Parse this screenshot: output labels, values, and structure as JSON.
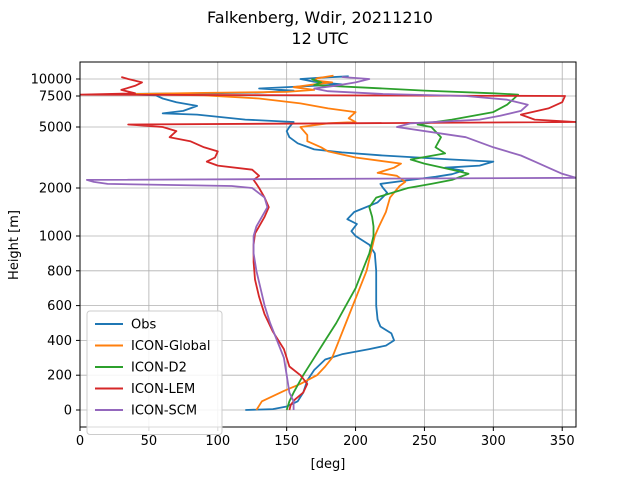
{
  "chart_data": {
    "type": "line",
    "title": "Falkenberg, Wdir, 20211210",
    "subtitle": "12 UTC",
    "xlabel": "[deg]",
    "ylabel": "Height [m]",
    "xlim": [
      0,
      360
    ],
    "x_ticks": [
      0,
      50,
      100,
      150,
      200,
      250,
      300,
      350
    ],
    "y_ticks": [
      0,
      200,
      400,
      600,
      800,
      1000,
      2000,
      5000,
      7500,
      10000
    ],
    "y_tick_labels": [
      "0",
      "200",
      "400",
      "600",
      "800",
      "1000",
      "2000",
      "5000",
      "7500",
      "10000"
    ],
    "grid": true,
    "legend_position": "lower-left",
    "series": [
      {
        "name": "Obs",
        "color": "#1f77b4",
        "points": [
          [
            120,
            0
          ],
          [
            140,
            5
          ],
          [
            150,
            20
          ],
          [
            158,
            50
          ],
          [
            162,
            100
          ],
          [
            165,
            170
          ],
          [
            170,
            230
          ],
          [
            178,
            290
          ],
          [
            190,
            320
          ],
          [
            210,
            350
          ],
          [
            222,
            370
          ],
          [
            228,
            400
          ],
          [
            226,
            440
          ],
          [
            218,
            480
          ],
          [
            216,
            520
          ],
          [
            215,
            600
          ],
          [
            215,
            700
          ],
          [
            215,
            800
          ],
          [
            214,
            900
          ],
          [
            210,
            950
          ],
          [
            200,
            1000
          ],
          [
            197,
            1100
          ],
          [
            201,
            1250
          ],
          [
            194,
            1350
          ],
          [
            199,
            1500
          ],
          [
            216,
            1700
          ],
          [
            223,
            1900
          ],
          [
            220,
            2000
          ],
          [
            218,
            2200
          ],
          [
            240,
            2400
          ],
          [
            258,
            2550
          ],
          [
            270,
            2680
          ],
          [
            278,
            2850
          ],
          [
            265,
            3000
          ],
          [
            290,
            3100
          ],
          [
            300,
            3300
          ],
          [
            270,
            3400
          ],
          [
            220,
            3600
          ],
          [
            190,
            3750
          ],
          [
            170,
            3900
          ],
          [
            158,
            4200
          ],
          [
            152,
            4500
          ],
          [
            150,
            4800
          ],
          [
            152,
            5000
          ],
          [
            155,
            5400
          ],
          [
            120,
            5600
          ],
          [
            85,
            6000
          ],
          [
            60,
            6100
          ],
          [
            75,
            6300
          ],
          [
            85,
            6700
          ],
          [
            70,
            7000
          ],
          [
            60,
            7300
          ],
          [
            55,
            7600
          ],
          [
            30,
            7800
          ],
          [
            90,
            7900
          ],
          [
            130,
            8000
          ],
          [
            155,
            8300
          ],
          [
            130,
            8600
          ],
          [
            160,
            8900
          ],
          [
            190,
            9200
          ],
          [
            170,
            9600
          ],
          [
            160,
            10000
          ],
          [
            175,
            10200
          ],
          [
            195,
            10400
          ]
        ]
      },
      {
        "name": "ICON-Global",
        "color": "#ff7f0e",
        "points": [
          [
            128,
            0
          ],
          [
            132,
            50
          ],
          [
            148,
            110
          ],
          [
            160,
            150
          ],
          [
            172,
            200
          ],
          [
            178,
            250
          ],
          [
            183,
            300
          ],
          [
            188,
            400
          ],
          [
            193,
            500
          ],
          [
            198,
            600
          ],
          [
            203,
            700
          ],
          [
            208,
            800
          ],
          [
            214,
            1000
          ],
          [
            217,
            1200
          ],
          [
            222,
            1500
          ],
          [
            225,
            1800
          ],
          [
            232,
            2100
          ],
          [
            236,
            2300
          ],
          [
            230,
            2600
          ],
          [
            216,
            2750
          ],
          [
            228,
            3000
          ],
          [
            233,
            3200
          ],
          [
            200,
            3500
          ],
          [
            180,
            3800
          ],
          [
            175,
            4000
          ],
          [
            165,
            4300
          ],
          [
            165,
            4600
          ],
          [
            160,
            5000
          ],
          [
            180,
            5300
          ],
          [
            200,
            5400
          ],
          [
            195,
            5700
          ],
          [
            200,
            6200
          ],
          [
            180,
            6500
          ],
          [
            160,
            6900
          ],
          [
            130,
            7300
          ],
          [
            90,
            7600
          ],
          [
            60,
            7700
          ],
          [
            40,
            7800
          ],
          [
            90,
            7950
          ],
          [
            150,
            8100
          ],
          [
            170,
            8400
          ],
          [
            155,
            8800
          ],
          [
            170,
            9200
          ],
          [
            183,
            9500
          ],
          [
            170,
            9800
          ],
          [
            172,
            10100
          ],
          [
            184,
            10500
          ]
        ]
      },
      {
        "name": "ICON-D2",
        "color": "#2ca02c",
        "points": [
          [
            150,
            0
          ],
          [
            152,
            50
          ],
          [
            155,
            100
          ],
          [
            162,
            200
          ],
          [
            170,
            300
          ],
          [
            178,
            400
          ],
          [
            186,
            500
          ],
          [
            193,
            600
          ],
          [
            200,
            700
          ],
          [
            205,
            800
          ],
          [
            210,
            900
          ],
          [
            213,
            1000
          ],
          [
            213,
            1200
          ],
          [
            212,
            1400
          ],
          [
            210,
            1600
          ],
          [
            215,
            1800
          ],
          [
            238,
            2000
          ],
          [
            255,
            2200
          ],
          [
            270,
            2400
          ],
          [
            282,
            2700
          ],
          [
            270,
            2900
          ],
          [
            250,
            3200
          ],
          [
            240,
            3400
          ],
          [
            265,
            3700
          ],
          [
            258,
            4000
          ],
          [
            262,
            4500
          ],
          [
            255,
            5000
          ],
          [
            245,
            5200
          ],
          [
            270,
            5600
          ],
          [
            300,
            6200
          ],
          [
            310,
            6800
          ],
          [
            315,
            7300
          ],
          [
            318,
            7700
          ],
          [
            300,
            7900
          ],
          [
            250,
            8300
          ],
          [
            210,
            8700
          ],
          [
            170,
            9100
          ],
          [
            175,
            9500
          ],
          [
            168,
            10000
          ]
        ]
      },
      {
        "name": "ICON-LEM",
        "color": "#d62728",
        "points": [
          [
            152,
            0
          ],
          [
            153,
            30
          ],
          [
            156,
            60
          ],
          [
            162,
            100
          ],
          [
            165,
            150
          ],
          [
            160,
            200
          ],
          [
            152,
            250
          ],
          [
            148,
            350
          ],
          [
            140,
            450
          ],
          [
            134,
            550
          ],
          [
            130,
            650
          ],
          [
            127,
            750
          ],
          [
            126,
            850
          ],
          [
            126,
            950
          ],
          [
            127,
            1050
          ],
          [
            130,
            1200
          ],
          [
            134,
            1400
          ],
          [
            137,
            1600
          ],
          [
            134,
            1800
          ],
          [
            130,
            2000
          ],
          [
            128,
            2200
          ],
          [
            126,
            2400
          ],
          [
            130,
            2600
          ],
          [
            125,
            2900
          ],
          [
            100,
            3100
          ],
          [
            92,
            3300
          ],
          [
            98,
            3500
          ],
          [
            100,
            3800
          ],
          [
            90,
            4000
          ],
          [
            80,
            4300
          ],
          [
            65,
            4500
          ],
          [
            70,
            4800
          ],
          [
            60,
            5000
          ],
          [
            35,
            5200
          ],
          [
            360,
            5400
          ],
          [
            330,
            5600
          ],
          [
            320,
            6000
          ],
          [
            340,
            6500
          ],
          [
            350,
            7000
          ],
          [
            352,
            7500
          ],
          [
            0,
            7700
          ],
          [
            40,
            7900
          ],
          [
            30,
            8400
          ],
          [
            40,
            9000
          ],
          [
            45,
            9500
          ],
          [
            35,
            10000
          ],
          [
            30,
            10300
          ]
        ]
      },
      {
        "name": "ICON-SCM",
        "color": "#9467bd",
        "points": [
          [
            155,
            0
          ],
          [
            155,
            50
          ],
          [
            152,
            100
          ],
          [
            150,
            200
          ],
          [
            148,
            300
          ],
          [
            143,
            400
          ],
          [
            138,
            500
          ],
          [
            134,
            600
          ],
          [
            131,
            700
          ],
          [
            128,
            800
          ],
          [
            126,
            900
          ],
          [
            126,
            1000
          ],
          [
            128,
            1200
          ],
          [
            132,
            1400
          ],
          [
            136,
            1600
          ],
          [
            134,
            1800
          ],
          [
            125,
            2000
          ],
          [
            110,
            2100
          ],
          [
            20,
            2200
          ],
          [
            10,
            2300
          ],
          [
            5,
            2400
          ],
          [
            360,
            2500
          ],
          [
            350,
            2700
          ],
          [
            340,
            3000
          ],
          [
            330,
            3300
          ],
          [
            320,
            3600
          ],
          [
            300,
            4000
          ],
          [
            280,
            4500
          ],
          [
            230,
            5000
          ],
          [
            240,
            5300
          ],
          [
            290,
            5600
          ],
          [
            305,
            5900
          ],
          [
            320,
            6300
          ],
          [
            325,
            6800
          ],
          [
            310,
            7200
          ],
          [
            280,
            7500
          ],
          [
            220,
            7800
          ],
          [
            180,
            8200
          ],
          [
            170,
            8600
          ],
          [
            185,
            9000
          ],
          [
            200,
            9500
          ],
          [
            210,
            10000
          ],
          [
            190,
            10300
          ]
        ]
      }
    ]
  }
}
